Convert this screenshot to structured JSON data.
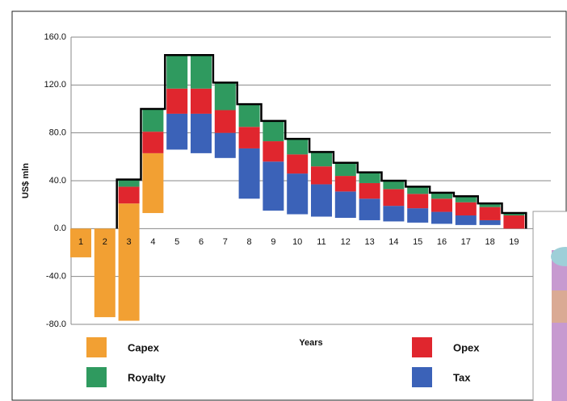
{
  "chart_data": {
    "type": "floating-stacked-bar",
    "y_label": "US$ mln",
    "x_label": "Years",
    "categories": [
      "1",
      "2",
      "3",
      "4",
      "5",
      "6",
      "7",
      "8",
      "9",
      "10",
      "11",
      "12",
      "13",
      "14",
      "15",
      "16",
      "17",
      "18",
      "19"
    ],
    "series": [
      {
        "name": "Capex",
        "color": "#f2a033",
        "values": [
          [
            0,
            -24
          ],
          [
            0,
            -74
          ],
          [
            -77,
            21
          ],
          [
            13,
            63
          ],
          null,
          null,
          null,
          null,
          null,
          null,
          null,
          null,
          null,
          null,
          null,
          null,
          null,
          null,
          null
        ]
      },
      {
        "name": "Tax",
        "color": "#3b62b8",
        "values": [
          null,
          null,
          null,
          null,
          [
            66,
            96
          ],
          [
            63,
            96
          ],
          [
            59,
            80
          ],
          [
            25,
            67
          ],
          [
            15,
            56
          ],
          [
            12,
            46
          ],
          [
            10,
            37
          ],
          [
            9,
            31
          ],
          [
            7,
            25
          ],
          [
            6,
            19
          ],
          [
            5,
            17
          ],
          [
            4,
            14
          ],
          [
            3,
            11
          ],
          [
            3,
            7
          ],
          null
        ]
      },
      {
        "name": "Opex",
        "color": "#e0262e",
        "values": [
          null,
          null,
          [
            21,
            35
          ],
          [
            63,
            81
          ],
          [
            96,
            117
          ],
          [
            96,
            117
          ],
          [
            80,
            99
          ],
          [
            67,
            85
          ],
          [
            56,
            73
          ],
          [
            46,
            62
          ],
          [
            37,
            52
          ],
          [
            31,
            44
          ],
          [
            25,
            38
          ],
          [
            19,
            33
          ],
          [
            17,
            29
          ],
          [
            14,
            25
          ],
          [
            11,
            22
          ],
          [
            7,
            18
          ],
          [
            0,
            11
          ]
        ]
      },
      {
        "name": "Royalty",
        "color": "#2f9a5f",
        "values": [
          null,
          null,
          [
            35,
            41
          ],
          [
            81,
            100
          ],
          [
            117,
            145
          ],
          [
            117,
            145
          ],
          [
            99,
            122
          ],
          [
            85,
            104
          ],
          [
            73,
            90
          ],
          [
            62,
            75
          ],
          [
            52,
            64
          ],
          [
            44,
            55
          ],
          [
            38,
            47
          ],
          [
            33,
            40
          ],
          [
            29,
            35
          ],
          [
            25,
            30
          ],
          [
            22,
            27
          ],
          [
            18,
            21
          ],
          [
            11,
            13
          ]
        ]
      }
    ],
    "ylim": [
      -80,
      160
    ],
    "yticks": [
      {
        "value": -80,
        "label": "-80.0"
      },
      {
        "value": -40,
        "label": "-40.0"
      },
      {
        "value": 0,
        "label": "0.0"
      },
      {
        "value": 40,
        "label": "40.0"
      },
      {
        "value": 80,
        "label": "80.0"
      },
      {
        "value": 120,
        "label": "120.0"
      },
      {
        "value": 160,
        "label": "160.0"
      }
    ],
    "grid": true,
    "outline": true,
    "legend": "bottom"
  }
}
